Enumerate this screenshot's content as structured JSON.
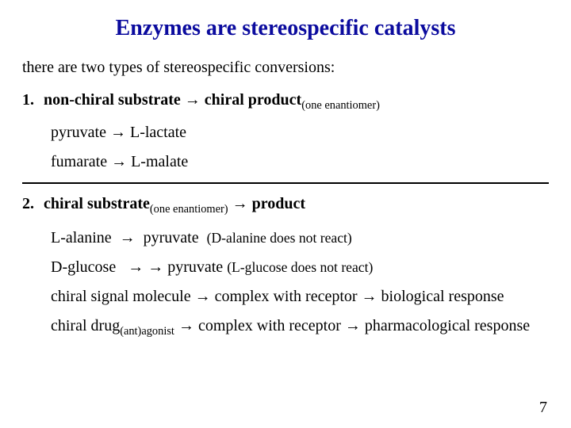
{
  "title": {
    "text": "Enzymes are stereospecific catalysts",
    "color": "#0b0b9e",
    "fontsize": 28
  },
  "intro": {
    "text": "there are two types of stereospecific conversions:",
    "fontsize": 20
  },
  "body_fontsize": 20,
  "arrow": "→",
  "item1": {
    "num": "1.",
    "lhs": "non-chiral substrate",
    "rhs": "chiral product",
    "sub": "(one enantiomer)",
    "ex1_lhs": "pyruvate",
    "ex1_rhs": "L-lactate",
    "ex2_lhs": "fumarate",
    "ex2_rhs": "L-malate"
  },
  "item2": {
    "num": "2.",
    "lhs": "chiral substrate",
    "lhs_sub": "(one enantiomer)",
    "rhs": "product",
    "ex1_lhs": "L-alanine",
    "ex1_rhs": "pyruvate",
    "ex1_note": "(D-alanine does not react)",
    "ex2_lhs": "D-glucose",
    "ex2_rhs": "pyruvate",
    "ex2_note": "(L-glucose does not react)",
    "ex3_a": "chiral signal molecule",
    "ex3_b": "complex with receptor",
    "ex3_c": "biological response",
    "ex4_a": "chiral drug",
    "ex4_sub": "(ant)agonist",
    "ex4_b": "complex with receptor",
    "ex4_c": "pharmacological response"
  },
  "pagenum": "7",
  "divider_color": "#000000"
}
